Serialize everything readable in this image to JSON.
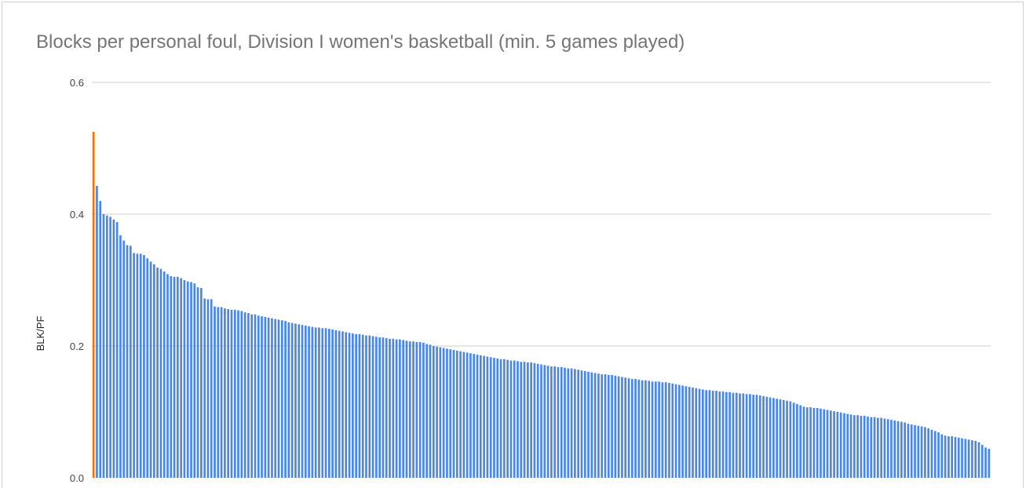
{
  "chart_data": {
    "type": "bar",
    "title": "Blocks per personal foul, Division I women's basketball (min. 5 games played)",
    "xlabel": "",
    "ylabel": "BLK/PF",
    "ylim": [
      0,
      0.6
    ],
    "yticks": [
      "0.0",
      "0.2",
      "0.4",
      "0.6"
    ],
    "grid": true,
    "colors": {
      "default_bar": "#4a86e8",
      "highlight_bar": "#ff6d01",
      "grid": "#cccccc",
      "title": "#757575"
    },
    "highlight_index": 0,
    "values": [
      0.525,
      0.443,
      0.42,
      0.4,
      0.398,
      0.396,
      0.392,
      0.388,
      0.368,
      0.36,
      0.353,
      0.352,
      0.341,
      0.34,
      0.34,
      0.338,
      0.333,
      0.328,
      0.324,
      0.319,
      0.317,
      0.313,
      0.309,
      0.306,
      0.305,
      0.305,
      0.303,
      0.3,
      0.298,
      0.297,
      0.295,
      0.289,
      0.288,
      0.272,
      0.271,
      0.271,
      0.26,
      0.259,
      0.259,
      0.257,
      0.256,
      0.255,
      0.255,
      0.254,
      0.253,
      0.251,
      0.25,
      0.248,
      0.248,
      0.246,
      0.245,
      0.244,
      0.243,
      0.242,
      0.241,
      0.24,
      0.239,
      0.238,
      0.236,
      0.235,
      0.234,
      0.233,
      0.232,
      0.231,
      0.23,
      0.229,
      0.228,
      0.228,
      0.227,
      0.227,
      0.226,
      0.225,
      0.224,
      0.223,
      0.222,
      0.221,
      0.22,
      0.219,
      0.218,
      0.218,
      0.217,
      0.216,
      0.216,
      0.215,
      0.214,
      0.213,
      0.213,
      0.212,
      0.211,
      0.211,
      0.21,
      0.21,
      0.209,
      0.208,
      0.207,
      0.207,
      0.206,
      0.206,
      0.205,
      0.203,
      0.202,
      0.2,
      0.199,
      0.198,
      0.197,
      0.196,
      0.195,
      0.194,
      0.193,
      0.192,
      0.191,
      0.19,
      0.189,
      0.188,
      0.187,
      0.186,
      0.185,
      0.184,
      0.183,
      0.182,
      0.181,
      0.18,
      0.18,
      0.179,
      0.178,
      0.178,
      0.177,
      0.176,
      0.176,
      0.175,
      0.175,
      0.174,
      0.173,
      0.172,
      0.171,
      0.17,
      0.169,
      0.169,
      0.168,
      0.168,
      0.167,
      0.166,
      0.166,
      0.165,
      0.164,
      0.163,
      0.162,
      0.161,
      0.16,
      0.159,
      0.158,
      0.157,
      0.157,
      0.156,
      0.156,
      0.155,
      0.154,
      0.153,
      0.152,
      0.151,
      0.15,
      0.15,
      0.149,
      0.148,
      0.148,
      0.147,
      0.146,
      0.146,
      0.146,
      0.145,
      0.145,
      0.144,
      0.143,
      0.142,
      0.141,
      0.14,
      0.139,
      0.138,
      0.137,
      0.136,
      0.135,
      0.134,
      0.133,
      0.133,
      0.132,
      0.132,
      0.131,
      0.131,
      0.13,
      0.13,
      0.129,
      0.129,
      0.128,
      0.128,
      0.127,
      0.127,
      0.126,
      0.126,
      0.125,
      0.124,
      0.123,
      0.122,
      0.121,
      0.12,
      0.119,
      0.118,
      0.117,
      0.116,
      0.114,
      0.112,
      0.11,
      0.108,
      0.107,
      0.107,
      0.106,
      0.106,
      0.105,
      0.104,
      0.103,
      0.102,
      0.101,
      0.1,
      0.099,
      0.098,
      0.097,
      0.096,
      0.095,
      0.095,
      0.094,
      0.094,
      0.093,
      0.092,
      0.092,
      0.091,
      0.091,
      0.09,
      0.089,
      0.088,
      0.087,
      0.086,
      0.085,
      0.084,
      0.082,
      0.081,
      0.08,
      0.079,
      0.078,
      0.077,
      0.075,
      0.073,
      0.071,
      0.069,
      0.066,
      0.064,
      0.063,
      0.063,
      0.062,
      0.061,
      0.06,
      0.059,
      0.058,
      0.057,
      0.056,
      0.054,
      0.05,
      0.046,
      0.044
    ]
  }
}
